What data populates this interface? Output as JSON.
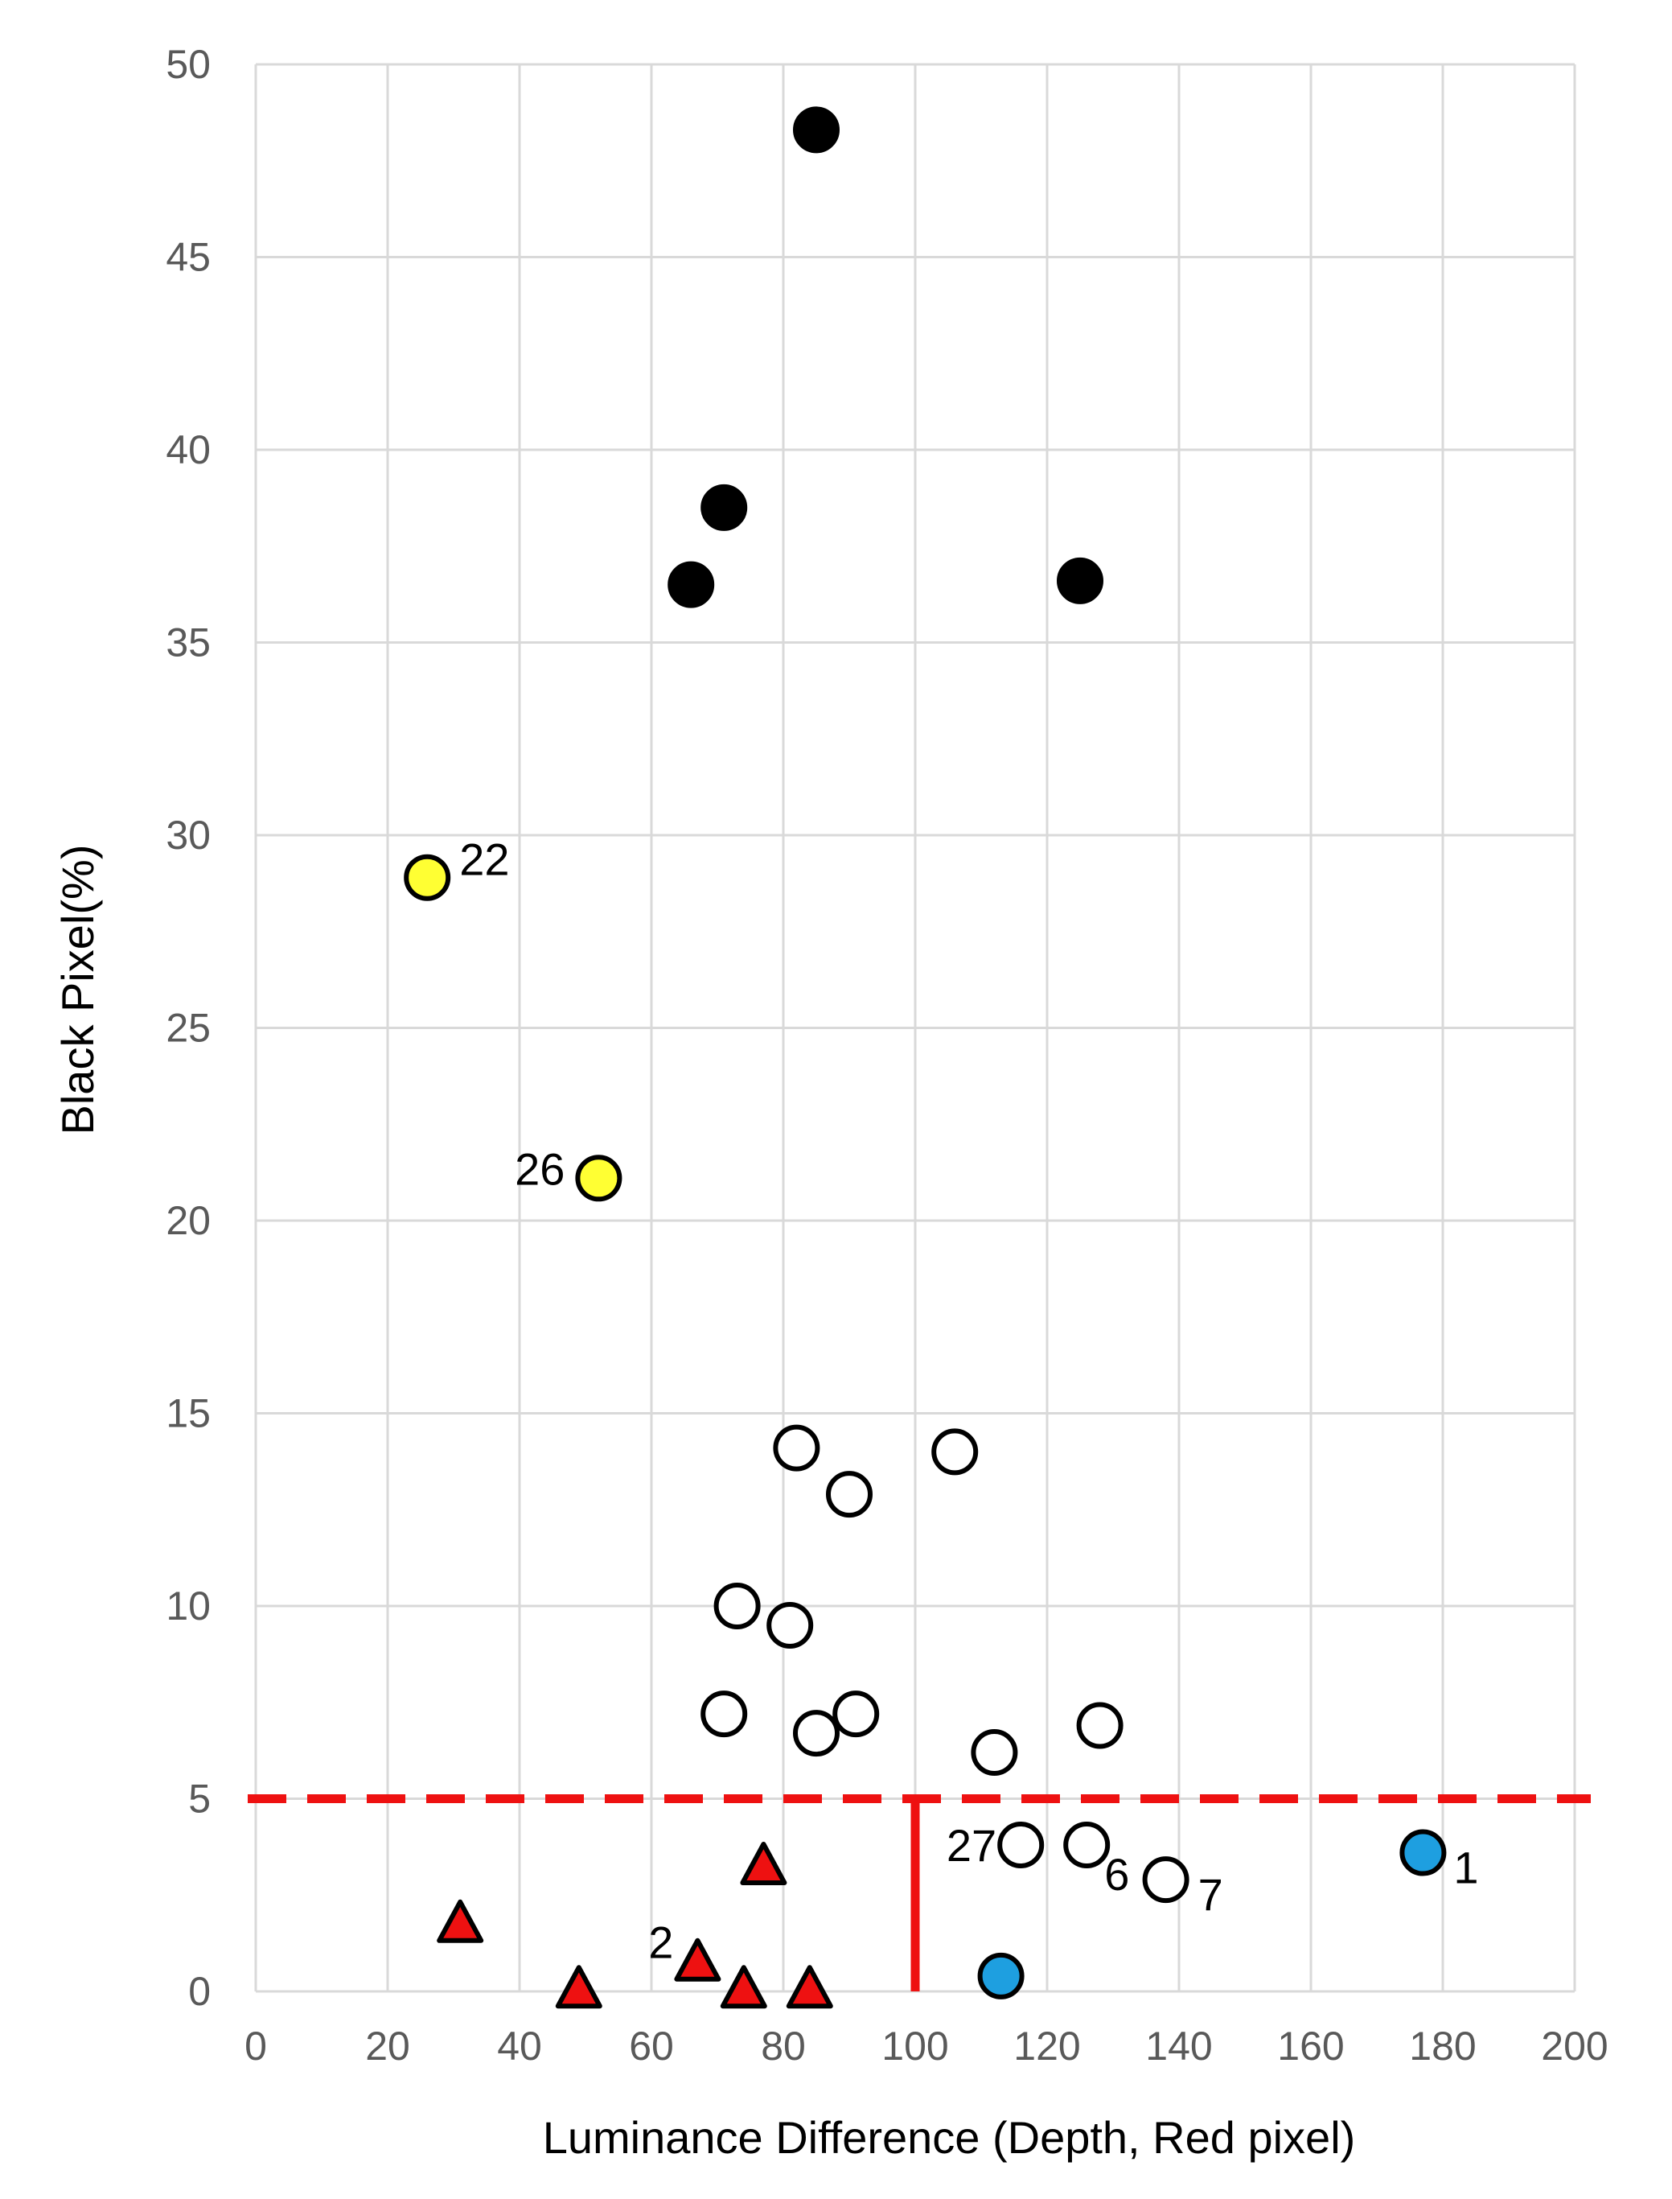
{
  "chart_data": {
    "type": "scatter",
    "title": "",
    "xlabel": "Luminance Difference  (Depth, Red pixel)",
    "ylabel": "Black Pixel(%)",
    "xlim": [
      0,
      200
    ],
    "ylim": [
      0,
      50
    ],
    "x_ticks": [
      0,
      20,
      40,
      60,
      80,
      100,
      120,
      140,
      160,
      180,
      200
    ],
    "y_ticks": [
      0,
      5,
      10,
      15,
      20,
      25,
      30,
      35,
      40,
      45,
      50
    ],
    "x_tick_labels": [
      "0",
      "20",
      "40",
      "60",
      "80",
      "100",
      "120",
      "140",
      "160",
      "180",
      "200"
    ],
    "y_tick_labels": [
      "0",
      "5",
      "10",
      "15",
      "20",
      "25",
      "30",
      "35",
      "40",
      "45",
      "50"
    ],
    "grid": true,
    "legend": "none",
    "series": [
      {
        "marker": "circle",
        "fill": "#000000",
        "stroke": "#000000",
        "x": [
          85,
          71,
          66,
          125
        ],
        "y": [
          48.3,
          38.5,
          36.5,
          36.6
        ],
        "labels": [
          "",
          "",
          "",
          ""
        ]
      },
      {
        "marker": "circle",
        "fill": "#ffff33",
        "stroke": "#000000",
        "x": [
          26,
          52
        ],
        "y": [
          28.9,
          21.1
        ],
        "labels": [
          "22",
          "26"
        ]
      },
      {
        "marker": "circle",
        "fill": "#ffffff",
        "stroke": "#000000",
        "x": [
          82,
          106,
          90,
          73,
          81,
          71,
          85,
          91,
          112,
          128,
          116,
          126,
          138
        ],
        "y": [
          14.1,
          14.0,
          12.9,
          10.0,
          9.5,
          7.2,
          6.7,
          7.2,
          6.2,
          6.9,
          3.8,
          3.8,
          2.9
        ],
        "labels": [
          "",
          "",
          "",
          "",
          "",
          "",
          "",
          "",
          "",
          "",
          "27",
          "6",
          "7"
        ]
      },
      {
        "marker": "circle",
        "fill": "#1e9fe0",
        "stroke": "#000000",
        "x": [
          177,
          113
        ],
        "y": [
          3.6,
          0.4
        ],
        "labels": [
          "1",
          ""
        ]
      },
      {
        "marker": "triangle",
        "fill": "#ee1111",
        "stroke": "#000000",
        "x": [
          77,
          31,
          67,
          49,
          74,
          84
        ],
        "y": [
          3.2,
          1.7,
          0.7,
          0.0,
          0.0,
          0.0
        ],
        "labels": [
          "",
          "",
          "2",
          "",
          "",
          ""
        ]
      }
    ],
    "threshold_lines": [
      {
        "orientation": "horizontal",
        "value": 5,
        "style": "dashed",
        "color": "#ee1111"
      },
      {
        "orientation": "vertical",
        "value": 100,
        "from": 0,
        "to": 5,
        "style": "solid",
        "color": "#ee1111"
      }
    ]
  }
}
